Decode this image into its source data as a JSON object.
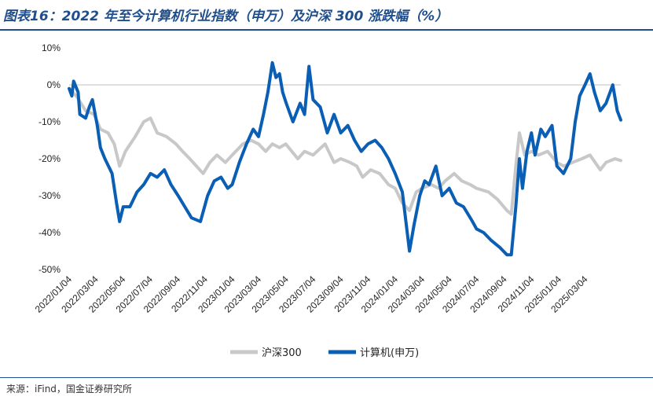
{
  "header": {
    "title": "图表16：2022 年至今计算机行业指数（申万）及沪深 300 涨跌幅（%）"
  },
  "footer": {
    "source": "来源：iFind，国金证券研究所"
  },
  "colors": {
    "title": "#1f4e8c",
    "series_hs300": "#c8c8c8",
    "series_computer": "#0a5fb4"
  },
  "chart_data": {
    "type": "line",
    "title": "",
    "xlabel": "",
    "ylabel": "",
    "ylim": [
      -50,
      10
    ],
    "yticks": [
      10,
      0,
      -10,
      -20,
      -30,
      -40,
      -50
    ],
    "ytick_labels": [
      "10%",
      "0%",
      "-10%",
      "-20%",
      "-30%",
      "-40%",
      "-50%"
    ],
    "xticks": [
      "2022/01/04",
      "2022/03/04",
      "2022/05/04",
      "2022/07/04",
      "2022/09/04",
      "2022/11/04",
      "2023/01/04",
      "2023/03/04",
      "2023/05/04",
      "2023/07/04",
      "2023/09/04",
      "2023/11/04",
      "2024/01/04",
      "2024/03/04",
      "2024/05/04",
      "2024/07/04",
      "2024/09/04",
      "2024/11/04",
      "2025/01/04",
      "2025/03/04"
    ],
    "grid": false,
    "legend_position": "bottom",
    "series": [
      {
        "name": "沪深300",
        "points": [
          [
            "2022/01/04",
            -1
          ],
          [
            "2022/01/20",
            -3
          ],
          [
            "2022/02/10",
            -7
          ],
          [
            "2022/03/01",
            -8
          ],
          [
            "2022/03/15",
            -12
          ],
          [
            "2022/04/01",
            -13
          ],
          [
            "2022/04/15",
            -16
          ],
          [
            "2022/04/27",
            -22
          ],
          [
            "2022/05/10",
            -18
          ],
          [
            "2022/06/01",
            -14
          ],
          [
            "2022/06/20",
            -10
          ],
          [
            "2022/07/05",
            -9
          ],
          [
            "2022/07/20",
            -13
          ],
          [
            "2022/08/10",
            -14
          ],
          [
            "2022/08/31",
            -16
          ],
          [
            "2022/09/15",
            -18
          ],
          [
            "2022/10/01",
            -20
          ],
          [
            "2022/10/31",
            -24
          ],
          [
            "2022/11/15",
            -21
          ],
          [
            "2022/12/01",
            -19
          ],
          [
            "2022/12/20",
            -21
          ],
          [
            "2023/01/04",
            -19
          ],
          [
            "2023/01/28",
            -16
          ],
          [
            "2023/02/15",
            -15
          ],
          [
            "2023/03/04",
            -16
          ],
          [
            "2023/03/20",
            -18
          ],
          [
            "2023/04/04",
            -16
          ],
          [
            "2023/04/20",
            -17
          ],
          [
            "2023/05/04",
            -16
          ],
          [
            "2023/05/31",
            -20
          ],
          [
            "2023/06/15",
            -18
          ],
          [
            "2023/07/04",
            -19
          ],
          [
            "2023/07/31",
            -16
          ],
          [
            "2023/08/20",
            -21
          ],
          [
            "2023/09/04",
            -20
          ],
          [
            "2023/09/25",
            -21
          ],
          [
            "2023/10/10",
            -22
          ],
          [
            "2023/10/23",
            -25
          ],
          [
            "2023/11/10",
            -23
          ],
          [
            "2023/11/30",
            -24
          ],
          [
            "2023/12/20",
            -27
          ],
          [
            "2024/01/04",
            -28
          ],
          [
            "2024/01/20",
            -32
          ],
          [
            "2024/02/05",
            -34
          ],
          [
            "2024/02/20",
            -29
          ],
          [
            "2024/03/04",
            -28
          ],
          [
            "2024/03/25",
            -27
          ],
          [
            "2024/04/10",
            -28
          ],
          [
            "2024/04/25",
            -26
          ],
          [
            "2024/05/15",
            -24
          ],
          [
            "2024/06/01",
            -26
          ],
          [
            "2024/06/20",
            -27
          ],
          [
            "2024/07/04",
            -28
          ],
          [
            "2024/07/31",
            -29
          ],
          [
            "2024/08/20",
            -31
          ],
          [
            "2024/09/10",
            -34
          ],
          [
            "2024/09/20",
            -35
          ],
          [
            "2024/09/30",
            -22
          ],
          [
            "2024/10/08",
            -13
          ],
          [
            "2024/10/20",
            -19
          ],
          [
            "2024/11/04",
            -18
          ],
          [
            "2024/11/20",
            -19
          ],
          [
            "2024/12/10",
            -18
          ],
          [
            "2024/12/31",
            -21
          ],
          [
            "2025/01/15",
            -22
          ],
          [
            "2025/02/04",
            -21
          ],
          [
            "2025/02/25",
            -20
          ],
          [
            "2025/03/15",
            -19
          ],
          [
            "2025/04/07",
            -23
          ],
          [
            "2025/04/20",
            -21
          ],
          [
            "2025/05/10",
            -20
          ],
          [
            "2025/05/23",
            -20.5
          ]
        ]
      },
      {
        "name": "计算机(申万)",
        "points": [
          [
            "2022/01/04",
            -1
          ],
          [
            "2022/01/10",
            -3
          ],
          [
            "2022/01/14",
            1
          ],
          [
            "2022/01/24",
            -2
          ],
          [
            "2022/01/28",
            -8
          ],
          [
            "2022/02/10",
            -9
          ],
          [
            "2022/02/18",
            -6
          ],
          [
            "2022/02/25",
            -4
          ],
          [
            "2022/03/08",
            -11
          ],
          [
            "2022/03/15",
            -17
          ],
          [
            "2022/03/25",
            -20
          ],
          [
            "2022/04/10",
            -24
          ],
          [
            "2022/04/20",
            -32
          ],
          [
            "2022/04/27",
            -37
          ],
          [
            "2022/05/05",
            -33
          ],
          [
            "2022/05/20",
            -33
          ],
          [
            "2022/06/05",
            -29
          ],
          [
            "2022/06/20",
            -27
          ],
          [
            "2022/07/05",
            -24
          ],
          [
            "2022/07/20",
            -25
          ],
          [
            "2022/08/05",
            -23
          ],
          [
            "2022/08/20",
            -27
          ],
          [
            "2022/09/05",
            -30
          ],
          [
            "2022/09/20",
            -33
          ],
          [
            "2022/10/05",
            -36
          ],
          [
            "2022/10/25",
            -37
          ],
          [
            "2022/11/10",
            -30
          ],
          [
            "2022/11/25",
            -26
          ],
          [
            "2022/12/10",
            -25
          ],
          [
            "2022/12/25",
            -28
          ],
          [
            "2023/01/04",
            -27
          ],
          [
            "2023/01/20",
            -21
          ],
          [
            "2023/02/05",
            -16
          ],
          [
            "2023/02/20",
            -12
          ],
          [
            "2023/03/04",
            -14
          ],
          [
            "2023/03/15",
            -8
          ],
          [
            "2023/03/25",
            -2
          ],
          [
            "2023/04/04",
            6
          ],
          [
            "2023/04/12",
            2
          ],
          [
            "2023/04/20",
            3
          ],
          [
            "2023/04/27",
            -2
          ],
          [
            "2023/05/05",
            -5
          ],
          [
            "2023/05/20",
            -10
          ],
          [
            "2023/06/05",
            -5
          ],
          [
            "2023/06/15",
            -8
          ],
          [
            "2023/06/25",
            5
          ],
          [
            "2023/07/04",
            -4
          ],
          [
            "2023/07/20",
            -6
          ],
          [
            "2023/08/05",
            -13
          ],
          [
            "2023/08/20",
            -8
          ],
          [
            "2023/09/04",
            -13
          ],
          [
            "2023/09/20",
            -11
          ],
          [
            "2023/10/05",
            -15
          ],
          [
            "2023/10/20",
            -18
          ],
          [
            "2023/11/04",
            -16
          ],
          [
            "2023/11/20",
            -15
          ],
          [
            "2023/12/05",
            -17
          ],
          [
            "2023/12/20",
            -20
          ],
          [
            "2024/01/04",
            -24
          ],
          [
            "2024/01/20",
            -29
          ],
          [
            "2024/02/05",
            -45
          ],
          [
            "2024/02/15",
            -38
          ],
          [
            "2024/02/28",
            -30
          ],
          [
            "2024/03/10",
            -26
          ],
          [
            "2024/03/20",
            -27
          ],
          [
            "2024/04/04",
            -22
          ],
          [
            "2024/04/18",
            -30
          ],
          [
            "2024/05/04",
            -28
          ],
          [
            "2024/05/20",
            -32
          ],
          [
            "2024/06/05",
            -33
          ],
          [
            "2024/06/25",
            -37
          ],
          [
            "2024/07/04",
            -39
          ],
          [
            "2024/07/20",
            -40
          ],
          [
            "2024/08/05",
            -42
          ],
          [
            "2024/08/25",
            -44
          ],
          [
            "2024/09/10",
            -46
          ],
          [
            "2024/09/20",
            -46
          ],
          [
            "2024/09/30",
            -33
          ],
          [
            "2024/10/08",
            -20
          ],
          [
            "2024/10/15",
            -28
          ],
          [
            "2024/10/25",
            -18
          ],
          [
            "2024/11/04",
            -13
          ],
          [
            "2024/11/12",
            -19
          ],
          [
            "2024/11/25",
            -12
          ],
          [
            "2024/12/05",
            -14
          ],
          [
            "2024/12/20",
            -11
          ],
          [
            "2024/12/31",
            -22
          ],
          [
            "2025/01/15",
            -24
          ],
          [
            "2025/01/31",
            -20
          ],
          [
            "2025/02/10",
            -10
          ],
          [
            "2025/02/20",
            -3
          ],
          [
            "2025/03/04",
            0
          ],
          [
            "2025/03/15",
            3
          ],
          [
            "2025/03/25",
            -2
          ],
          [
            "2025/04/07",
            -7
          ],
          [
            "2025/04/20",
            -5
          ],
          [
            "2025/05/05",
            0
          ],
          [
            "2025/05/15",
            -7
          ],
          [
            "2025/05/23",
            -9.5
          ]
        ]
      }
    ]
  }
}
